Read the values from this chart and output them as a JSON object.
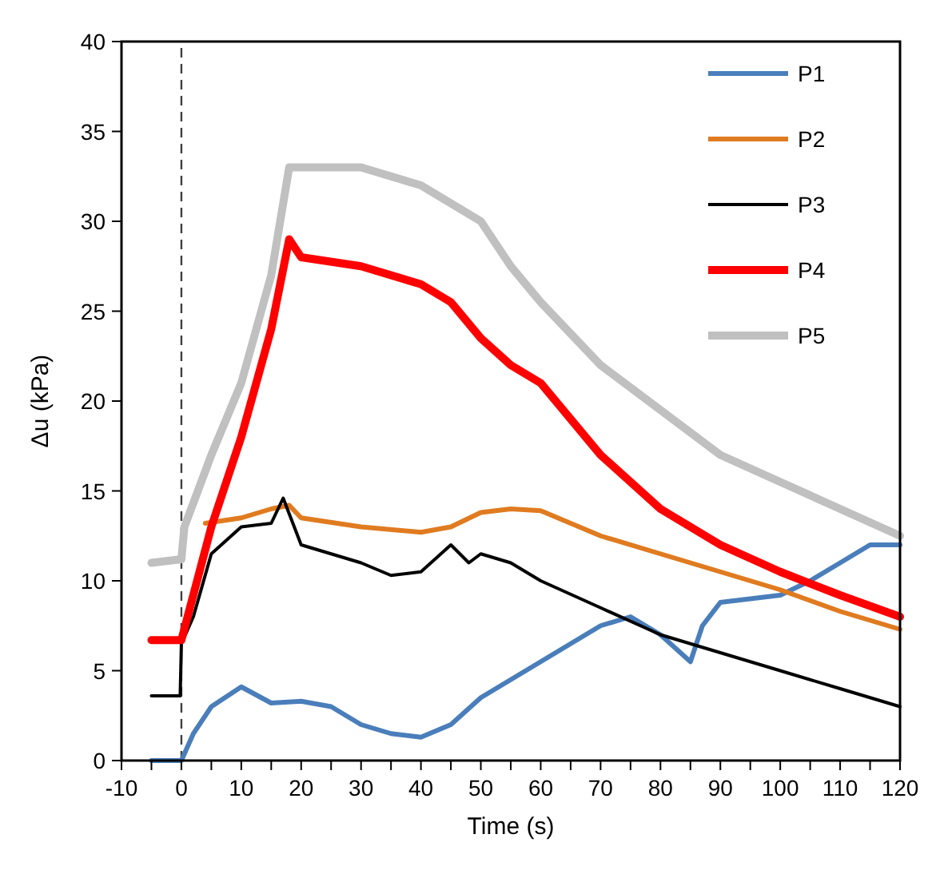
{
  "chart_data": {
    "type": "line",
    "xlabel": "Time (s)",
    "ylabel": "Δu (kPa)",
    "xlim": [
      -10,
      120
    ],
    "ylim": [
      0,
      40
    ],
    "xticks": [
      -10,
      {
        "value": -5,
        "label": null
      },
      0,
      {
        "value": 5,
        "label": null
      },
      10,
      {
        "value": 15,
        "label": null
      },
      20,
      {
        "value": 25,
        "label": null
      },
      30,
      {
        "value": 35,
        "label": null
      },
      40,
      {
        "value": 45,
        "label": null
      },
      50,
      {
        "value": 55,
        "label": null
      },
      60,
      {
        "value": 65,
        "label": null
      },
      70,
      {
        "value": 75,
        "label": null
      },
      80,
      {
        "value": 85,
        "label": null
      },
      90,
      {
        "value": 95,
        "label": null
      },
      100,
      {
        "value": 105,
        "label": null
      },
      110,
      {
        "value": 115,
        "label": null
      },
      120
    ],
    "yticks": [
      0,
      5,
      10,
      15,
      20,
      25,
      30,
      35,
      40
    ],
    "grid": false,
    "legend": "top right",
    "marker": "none",
    "line_style": "solid",
    "ref_lines": [
      {
        "axis": "x",
        "value": 0,
        "label": null,
        "color": "#404040",
        "line_style": "dashed"
      }
    ],
    "series": [
      {
        "name": "P1",
        "color": "#4a7ebb",
        "x": [
          -5,
          0,
          2,
          5,
          10,
          15,
          20,
          25,
          30,
          35,
          40,
          45,
          50,
          55,
          60,
          65,
          70,
          75,
          80,
          85,
          87,
          90,
          95,
          100,
          105,
          110,
          115,
          120
        ],
        "values": [
          0,
          0,
          1.5,
          3,
          4.1,
          3.2,
          3.3,
          3.0,
          2.0,
          1.5,
          1.3,
          2,
          3.5,
          4.5,
          5.5,
          6.5,
          7.5,
          8,
          7,
          5.5,
          7.5,
          8.8,
          9,
          9.2,
          10,
          11,
          12,
          12
        ]
      },
      {
        "name": "P2",
        "color": "#e07b20",
        "x": [
          4,
          10,
          15,
          18,
          20,
          30,
          40,
          45,
          50,
          55,
          60,
          65,
          70,
          80,
          90,
          100,
          110,
          120
        ],
        "values": [
          13.2,
          13.5,
          14,
          14.2,
          13.5,
          13,
          12.7,
          13,
          13.8,
          14,
          13.9,
          13.2,
          12.5,
          11.5,
          10.5,
          9.5,
          8.3,
          7.3
        ]
      },
      {
        "name": "P3",
        "color": "#000000",
        "x": [
          -5,
          -0.2,
          0,
          2,
          5,
          10,
          15,
          17,
          20,
          25,
          30,
          35,
          40,
          45,
          48,
          50,
          55,
          60,
          70,
          80,
          90,
          100,
          110,
          120
        ],
        "values": [
          3.6,
          3.6,
          6.5,
          8,
          11.5,
          13,
          13.2,
          14.6,
          12,
          11.5,
          11,
          10.3,
          10.5,
          12,
          11,
          11.5,
          11,
          10,
          8.5,
          7,
          6,
          5,
          4,
          3
        ]
      },
      {
        "name": "P4",
        "color": "#ff0000",
        "x": [
          -5,
          0,
          5,
          10,
          15,
          18,
          20,
          30,
          40,
          45,
          50,
          55,
          60,
          70,
          80,
          90,
          100,
          110,
          120
        ],
        "values": [
          6.7,
          6.7,
          13,
          18,
          24,
          29,
          28,
          27.5,
          26.5,
          25.5,
          23.5,
          22,
          21,
          17,
          14,
          12,
          10.5,
          9.2,
          8
        ]
      },
      {
        "name": "P5",
        "color": "#c0c0c0",
        "x": [
          -5,
          0,
          0.5,
          5,
          10,
          15,
          18,
          20,
          30,
          40,
          50,
          55,
          60,
          70,
          80,
          90,
          100,
          110,
          120
        ],
        "values": [
          11,
          11.2,
          13,
          17,
          21,
          27,
          33,
          33,
          33,
          32,
          30,
          27.5,
          25.5,
          22,
          19.5,
          17,
          15.5,
          14,
          12.5
        ]
      }
    ]
  }
}
